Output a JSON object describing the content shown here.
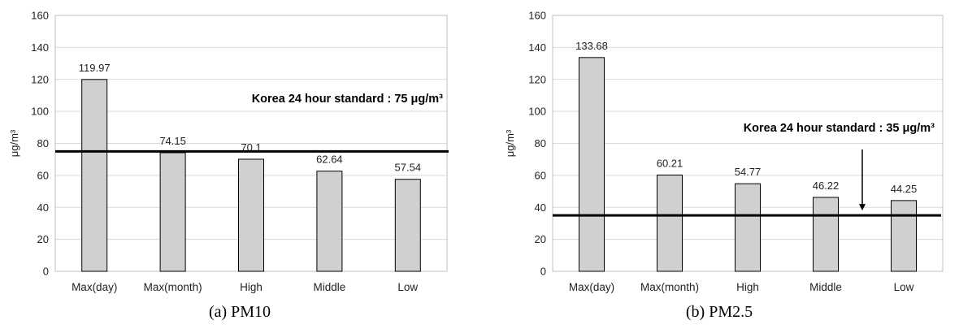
{
  "chart_data": [
    {
      "type": "bar",
      "caption": "(a)  PM10",
      "ylabel": "μg/m³",
      "categories": [
        "Max(day)",
        "Max(month)",
        "High",
        "Middle",
        "Low"
      ],
      "values": [
        119.97,
        74.15,
        70.1,
        62.64,
        57.54
      ],
      "value_labels": [
        "119.97",
        "74.15",
        "70.1",
        "62.64",
        "57.54"
      ],
      "ylim": [
        0,
        160
      ],
      "yticks": [
        0,
        20,
        40,
        60,
        80,
        100,
        120,
        140,
        160
      ],
      "grid": true,
      "bar_color": "#d0d0d0",
      "reference_line": {
        "value": 75,
        "label": "Korea 24 hour standard : 75 μg/m³",
        "arrow": false
      }
    },
    {
      "type": "bar",
      "caption": "(b)  PM2.5",
      "ylabel": "μg/m³",
      "categories": [
        "Max(day)",
        "Max(month)",
        "High",
        "Middle",
        "Low"
      ],
      "values": [
        133.68,
        60.21,
        54.77,
        46.22,
        44.25
      ],
      "value_labels": [
        "133.68",
        "60.21",
        "54.77",
        "46.22",
        "44.25"
      ],
      "ylim": [
        0,
        160
      ],
      "yticks": [
        0,
        20,
        40,
        60,
        80,
        100,
        120,
        140,
        160
      ],
      "grid": true,
      "bar_color": "#d0d0d0",
      "reference_line": {
        "value": 35,
        "label": "Korea 24 hour standard : 35 μg/m³",
        "arrow": true
      }
    }
  ]
}
